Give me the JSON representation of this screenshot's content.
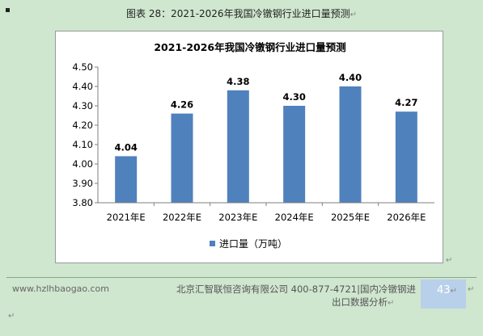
{
  "caption": {
    "label": "图表",
    "number": "28",
    "title": "2021-2026年我国冷镦钢行业进口量预测"
  },
  "chart_data": {
    "type": "bar",
    "title": "2021-2026年我国冷镦钢行业进口量预测",
    "categories": [
      "2021年E",
      "2022年E",
      "2023年E",
      "2024年E",
      "2025年E",
      "2026年E"
    ],
    "series": [
      {
        "name": "进口量（万吨）",
        "values": [
          4.04,
          4.26,
          4.38,
          4.3,
          4.4,
          4.27
        ],
        "color": "#4f81bd"
      }
    ],
    "ylim": [
      3.8,
      4.5
    ],
    "yticks": [
      "3.80",
      "3.90",
      "4.00",
      "4.10",
      "4.20",
      "4.30",
      "4.40",
      "4.50"
    ],
    "data_labels": [
      "4.04",
      "4.26",
      "4.38",
      "4.30",
      "4.40",
      "4.27"
    ],
    "legend_position": "bottom",
    "grid": false
  },
  "footer": {
    "website": "www.hzlhbaogao.com",
    "company": "北京汇智联恒咨询有限公司",
    "phone": "400-877-4721",
    "doc_title_line1": "国内冷镦钢进",
    "doc_title_line2": "出口数据分析",
    "page_number": "43"
  },
  "return_mark": "↵"
}
